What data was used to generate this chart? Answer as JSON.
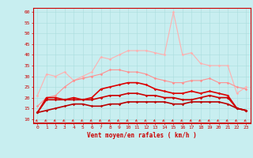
{
  "x": [
    0,
    1,
    2,
    3,
    4,
    5,
    6,
    7,
    8,
    9,
    10,
    11,
    12,
    13,
    14,
    15,
    16,
    17,
    18,
    19,
    20,
    21,
    22,
    23
  ],
  "xlabel": "Vent moyen/en rafales ( km/h )",
  "ylim": [
    8,
    62
  ],
  "yticks": [
    10,
    15,
    20,
    25,
    30,
    35,
    40,
    45,
    50,
    55,
    60
  ],
  "bg_color": "#c8eef0",
  "series": {
    "rafales_max": [
      21,
      31,
      30,
      32,
      28,
      30,
      32,
      39,
      38,
      40,
      42,
      42,
      42,
      41,
      40,
      60,
      40,
      41,
      36,
      35,
      35,
      35,
      22,
      25
    ],
    "rafales_mean": [
      16,
      20,
      21,
      25,
      28,
      29,
      30,
      31,
      33,
      33,
      32,
      32,
      31,
      29,
      28,
      27,
      27,
      28,
      28,
      29,
      27,
      27,
      25,
      24
    ],
    "vent_max": [
      13,
      20,
      20,
      19,
      20,
      19,
      20,
      24,
      25,
      26,
      27,
      27,
      26,
      24,
      23,
      22,
      22,
      23,
      22,
      23,
      22,
      21,
      15,
      14
    ],
    "vent_mean": [
      13,
      19,
      19,
      19,
      19,
      19,
      19,
      20,
      21,
      21,
      22,
      22,
      21,
      21,
      20,
      20,
      19,
      19,
      20,
      21,
      20,
      20,
      15,
      14
    ],
    "vent_min": [
      13,
      14,
      15,
      16,
      17,
      17,
      16,
      16,
      17,
      17,
      18,
      18,
      18,
      18,
      18,
      17,
      17,
      18,
      18,
      18,
      18,
      17,
      15,
      14
    ]
  },
  "color_rafales_max": "#ffb0b0",
  "color_rafales_mean": "#ff9090",
  "color_vent_max": "#dd0000",
  "color_vent_mean": "#cc0000",
  "color_vent_min": "#bb0000",
  "color_arrow": "#dd3333",
  "color_grid": "#aadddd",
  "color_text": "#cc0000",
  "color_spine": "#cc0000"
}
